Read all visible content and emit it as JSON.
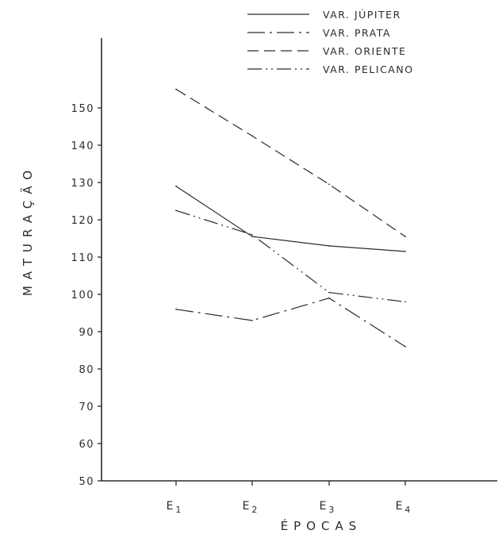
{
  "chart_data": {
    "type": "line",
    "title": "",
    "xlabel": "ÉPOCAS",
    "ylabel": "MATURAÇÃO",
    "categories": [
      {
        "main": "E",
        "sub": "1"
      },
      {
        "main": "E",
        "sub": "2"
      },
      {
        "main": "E",
        "sub": "3"
      },
      {
        "main": "E",
        "sub": "4"
      }
    ],
    "yticks": [
      "50",
      "60",
      "70",
      "80",
      "90",
      "100",
      "110",
      "120",
      "130",
      "140",
      "150"
    ],
    "ylim": [
      50,
      160
    ],
    "grid": false,
    "legend_position": "top-right",
    "series": [
      {
        "name": "VAR. JÚPITER",
        "style": "solid",
        "values": [
          129,
          115.5,
          113,
          111.5
        ]
      },
      {
        "name": "VAR. PRATA",
        "style": "dashdot",
        "values": [
          96,
          93,
          99,
          86
        ]
      },
      {
        "name": "VAR. ORIENTE",
        "style": "dashed",
        "values": [
          155,
          142.5,
          129.5,
          115.5
        ]
      },
      {
        "name": "VAR. PELICANO",
        "style": "dashdotdot",
        "values": [
          122.5,
          116,
          100.5,
          98
        ]
      }
    ],
    "colors": {
      "ink": "#2b2b2b"
    }
  }
}
